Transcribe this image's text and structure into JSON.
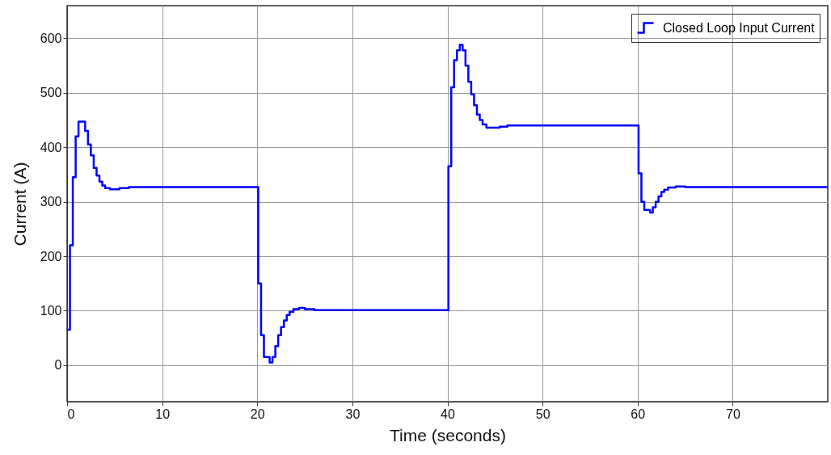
{
  "chart_data": {
    "type": "step",
    "xlabel": "Time (seconds)",
    "ylabel": "Current (A)",
    "xlim": [
      0,
      80
    ],
    "ylim": [
      -67,
      660
    ],
    "xticks": [
      0,
      10,
      20,
      30,
      40,
      50,
      60,
      70
    ],
    "yticks": [
      0,
      100,
      200,
      300,
      400,
      500,
      600
    ],
    "grid": true,
    "legend": "top right",
    "series": [
      {
        "name": "Closed Loop Input Current",
        "color": "#0000ff",
        "x": [
          0,
          0.3,
          0.6,
          0.9,
          1.2,
          1.9,
          2.2,
          2.5,
          2.8,
          3.1,
          3.4,
          3.7,
          4.0,
          4.5,
          5.5,
          6.5,
          20.1,
          20.4,
          20.7,
          21.3,
          21.6,
          21.9,
          22.2,
          22.5,
          22.8,
          23.1,
          23.4,
          23.8,
          24.4,
          25,
          26,
          40.1,
          40.4,
          40.7,
          41.0,
          41.3,
          41.6,
          41.9,
          42.2,
          42.5,
          42.8,
          43.1,
          43.4,
          43.7,
          44.1,
          44.8,
          45.5,
          46.3,
          60.1,
          60.4,
          60.7,
          61.3,
          61.6,
          61.9,
          62.2,
          62.5,
          62.8,
          63.2,
          64.0,
          65,
          80
        ],
        "values": [
          65,
          220,
          345,
          420,
          447,
          430,
          405,
          385,
          362,
          348,
          337,
          330,
          325,
          323,
          325,
          327,
          150,
          55,
          15,
          5,
          15,
          35,
          55,
          70,
          82,
          92,
          98,
          103,
          105,
          103,
          101,
          365,
          510,
          560,
          578,
          588,
          578,
          550,
          520,
          497,
          477,
          460,
          450,
          442,
          436,
          436,
          438,
          440,
          352,
          300,
          285,
          280,
          290,
          300,
          310,
          318,
          322,
          326,
          328,
          327,
          327
        ]
      }
    ]
  }
}
